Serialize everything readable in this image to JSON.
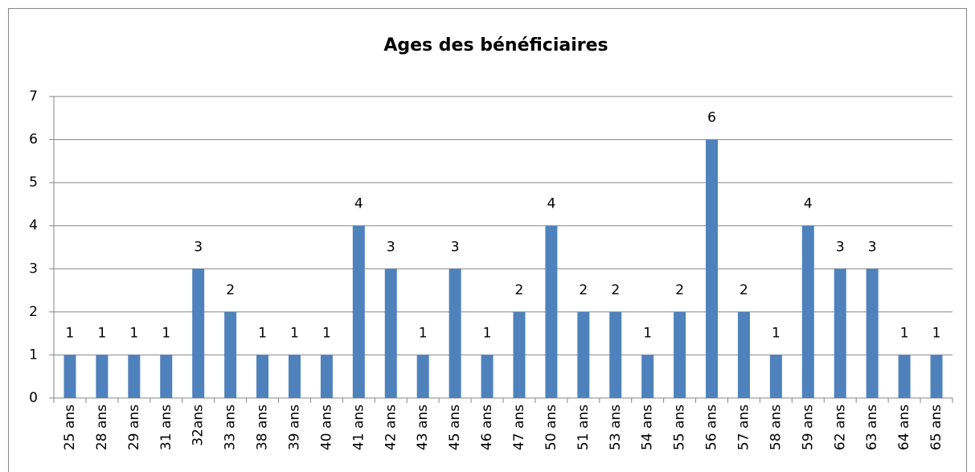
{
  "chart_data": {
    "type": "bar",
    "title": "Ages des bénéficiaires",
    "categories": [
      "25 ans",
      "28 ans",
      "29 ans",
      "31 ans",
      "32ans",
      "33 ans",
      "38 ans",
      "39 ans",
      "40 ans",
      "41 ans",
      "42 ans",
      "43 ans",
      "45 ans",
      "46 ans",
      "47 ans",
      "50 ans",
      "51 ans",
      "53 ans",
      "54 ans",
      "55 ans",
      "56 ans",
      "57 ans",
      "58 ans",
      "59 ans",
      "62 ans",
      "63 ans",
      "64 ans",
      "65 ans"
    ],
    "values": [
      1,
      1,
      1,
      1,
      3,
      2,
      1,
      1,
      1,
      4,
      3,
      1,
      3,
      1,
      2,
      4,
      2,
      2,
      1,
      2,
      6,
      2,
      1,
      4,
      3,
      3,
      1,
      1
    ],
    "color": "#4f81bd",
    "ylim": [
      0,
      7
    ],
    "yticks": [
      0,
      1,
      2,
      3,
      4,
      5,
      6,
      7
    ],
    "grid": true
  }
}
